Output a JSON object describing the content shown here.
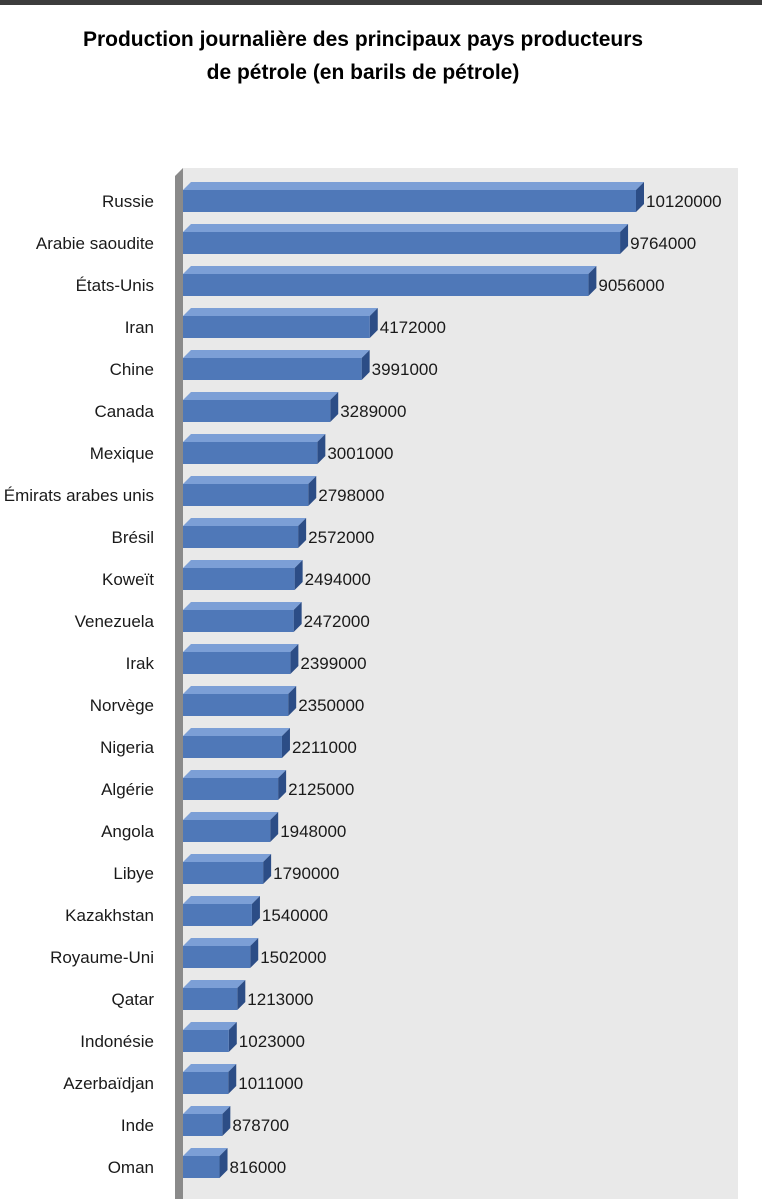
{
  "title_line1": "Production journalière des principaux pays producteurs",
  "title_line2": "de pétrole (en barils de pétrole)",
  "colors": {
    "bar_front": "#4f78b8",
    "bar_top": "#7c9fd6",
    "bar_side": "#2c4d86",
    "plot_background": "#e9e9e9",
    "axis_wall": "#8a8a8a"
  },
  "chart_data": {
    "type": "bar",
    "orientation": "horizontal",
    "style": "3d",
    "title": "Production journalière des principaux pays producteurs de pétrole (en barils de pétrole)",
    "xlim": [
      0,
      10500000
    ],
    "grid": false,
    "categories": [
      "Russie",
      "Arabie saoudite",
      "États-Unis",
      "Iran",
      "Chine",
      "Canada",
      "Mexique",
      "Émirats arabes unis",
      "Brésil",
      "Koweït",
      "Venezuela",
      "Irak",
      "Norvège",
      "Nigeria",
      "Algérie",
      "Angola",
      "Libye",
      "Kazakhstan",
      "Royaume-Uni",
      "Qatar",
      "Indonésie",
      "Azerbaïdjan",
      "Inde",
      "Oman"
    ],
    "values": [
      10120000,
      9764000,
      9056000,
      4172000,
      3991000,
      3289000,
      3001000,
      2798000,
      2572000,
      2494000,
      2472000,
      2399000,
      2350000,
      2211000,
      2125000,
      1948000,
      1790000,
      1540000,
      1502000,
      1213000,
      1023000,
      1011000,
      878700,
      816000
    ]
  }
}
